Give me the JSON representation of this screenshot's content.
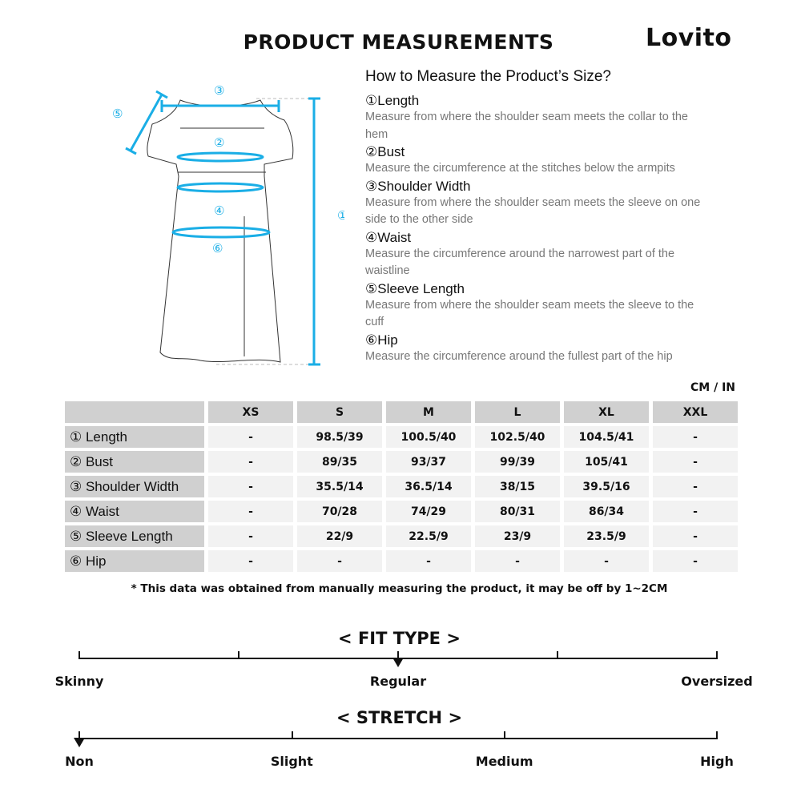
{
  "header": {
    "title": "PRODUCT MEASUREMENTS",
    "logo": "Lovito"
  },
  "guide": {
    "heading": "How to Measure the Product’s Size?",
    "items": [
      {
        "label": "①Length",
        "desc": "Measure from where the shoulder seam meets the collar to the hem"
      },
      {
        "label": "②Bust",
        "desc": "Measure the circumference at the stitches below the armpits"
      },
      {
        "label": "③Shoulder Width",
        "desc": "Measure from where the shoulder seam meets the sleeve on one side to the other side"
      },
      {
        "label": "④Waist",
        "desc": "Measure the circumference around the narrowest part of the waistline"
      },
      {
        "label": "⑤Sleeve Length",
        "desc": "Measure from where the shoulder seam meets the sleeve to the cuff"
      },
      {
        "label": "⑥Hip",
        "desc": "Measure the circumference around the fullest part of the hip"
      }
    ]
  },
  "diagram": {
    "markers": [
      "①",
      "②",
      "③",
      "④",
      "⑤",
      "⑥"
    ],
    "accent": "#1aaee6"
  },
  "table": {
    "unit": "CM / IN",
    "sizes": [
      "XS",
      "S",
      "M",
      "L",
      "XL",
      "XXL"
    ],
    "rows": [
      {
        "label": "① Length",
        "values": [
          "-",
          "98.5/39",
          "100.5/40",
          "102.5/40",
          "104.5/41",
          "-"
        ]
      },
      {
        "label": "② Bust",
        "values": [
          "-",
          "89/35",
          "93/37",
          "99/39",
          "105/41",
          "-"
        ]
      },
      {
        "label": "③ Shoulder Width",
        "values": [
          "-",
          "35.5/14",
          "36.5/14",
          "38/15",
          "39.5/16",
          "-"
        ]
      },
      {
        "label": "④ Waist",
        "values": [
          "-",
          "70/28",
          "74/29",
          "80/31",
          "86/34",
          "-"
        ]
      },
      {
        "label": "⑤ Sleeve Length",
        "values": [
          "-",
          "22/9",
          "22.5/9",
          "23/9",
          "23.5/9",
          "-"
        ]
      },
      {
        "label": "⑥ Hip",
        "values": [
          "-",
          "-",
          "-",
          "-",
          "-",
          "-"
        ]
      }
    ]
  },
  "note": "* This data was obtained from manually measuring the product, it may be off by 1~2CM",
  "fit": {
    "title": "< FIT TYPE >",
    "labels": [
      "Skinny",
      "Regular",
      "Oversized"
    ],
    "selected": "Regular",
    "position": 0.5
  },
  "stretch": {
    "title": "< STRETCH >",
    "labels": [
      "Non",
      "Slight",
      "Medium",
      "High"
    ],
    "selected": "Non",
    "position": 0
  }
}
